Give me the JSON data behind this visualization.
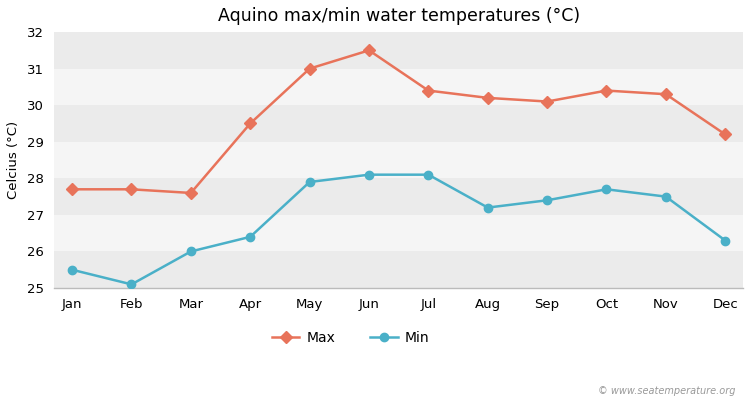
{
  "months": [
    "Jan",
    "Feb",
    "Mar",
    "Apr",
    "May",
    "Jun",
    "Jul",
    "Aug",
    "Sep",
    "Oct",
    "Nov",
    "Dec"
  ],
  "max_temps": [
    27.7,
    27.7,
    27.6,
    29.5,
    31.0,
    31.5,
    30.4,
    30.2,
    30.1,
    30.4,
    30.3,
    29.2
  ],
  "min_temps": [
    25.5,
    25.1,
    26.0,
    26.4,
    27.9,
    28.1,
    28.1,
    27.2,
    27.4,
    27.7,
    27.5,
    26.3
  ],
  "max_color": "#e8735a",
  "min_color": "#4ab0c8",
  "title": "Aquino max/min water temperatures (°C)",
  "ylabel": "Celcius (°C)",
  "ylim": [
    25.0,
    32.0
  ],
  "yticks": [
    25,
    26,
    27,
    28,
    29,
    30,
    31,
    32
  ],
  "fig_bg_color": "#ffffff",
  "plot_bg_color": "#ffffff",
  "band_color_dark": "#ebebeb",
  "band_color_light": "#f5f5f5",
  "watermark": "© www.seatemperature.org",
  "legend_max": "Max",
  "legend_min": "Min"
}
